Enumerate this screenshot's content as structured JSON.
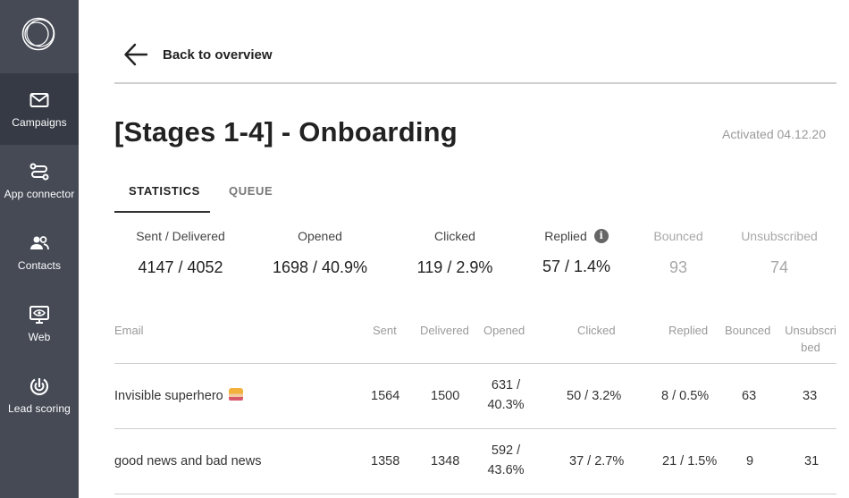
{
  "sidebar": {
    "items": [
      {
        "label": "Campaigns",
        "icon": "mail-icon",
        "active": true
      },
      {
        "label": "App connector",
        "icon": "connector-icon",
        "active": false
      },
      {
        "label": "Contacts",
        "icon": "contacts-icon",
        "active": false
      },
      {
        "label": "Web",
        "icon": "web-monitor-icon",
        "active": false
      },
      {
        "label": "Lead scoring",
        "icon": "target-icon",
        "active": false
      }
    ]
  },
  "header": {
    "back_label": "Back to overview",
    "title": "[Stages 1-4] - Onboarding",
    "activated": "Activated 04.12.20"
  },
  "tabs": [
    {
      "label": "STATISTICS",
      "active": true
    },
    {
      "label": "QUEUE",
      "active": false
    }
  ],
  "stats": [
    {
      "label": "Sent / Delivered",
      "value": "4147 / 4052"
    },
    {
      "label": "Opened",
      "value": "1698 / 40.9%"
    },
    {
      "label": "Clicked",
      "value": "119 / 2.9%"
    },
    {
      "label": "Replied",
      "value": "57 / 1.4%"
    },
    {
      "label": "Bounced",
      "value": "93"
    },
    {
      "label": "Unsubscribed",
      "value": "74"
    }
  ],
  "table": {
    "columns": [
      "Email",
      "Sent",
      "Delivered",
      "Opened",
      "Clicked",
      "Replied",
      "Bounced",
      "Unsubscri bed"
    ],
    "unsub_header_line1": "Unsubscri",
    "unsub_header_line2": "bed",
    "rows": [
      {
        "email": "Invisible superhero",
        "sent": "1564",
        "delivered": "1500",
        "opened_1": "631 /",
        "opened_2": "40.3%",
        "clicked": "50 / 3.2%",
        "replied": "8 / 0.5%",
        "bounced": "63",
        "unsubscribed": "33"
      },
      {
        "email": "good news and bad news",
        "sent": "1358",
        "delivered": "1348",
        "opened_1": "592 /",
        "opened_2": "43.6%",
        "clicked": "37 / 2.7%",
        "replied": "21 / 1.5%",
        "bounced": "9",
        "unsubscribed": "31"
      }
    ]
  },
  "colors": {
    "sidebar_bg": "#454a55",
    "sidebar_active": "#353a44",
    "muted_text": "#a8a8a8"
  }
}
